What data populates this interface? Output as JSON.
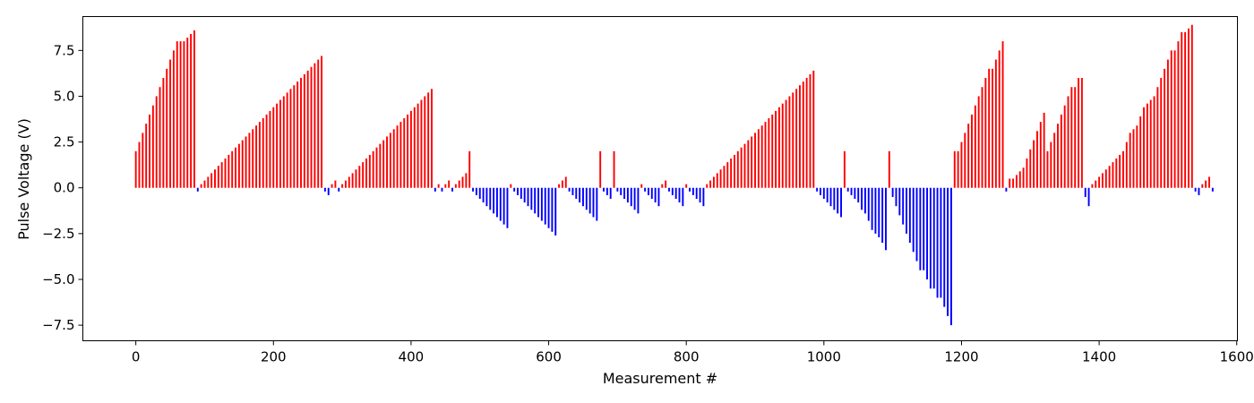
{
  "chart_data": {
    "type": "bar",
    "title": "",
    "xlabel": "Measurement #",
    "ylabel": "Pulse Voltage (V)",
    "xlim": [
      -77,
      1601
    ],
    "ylim": [
      -8.35,
      9.35
    ],
    "xticks": [
      0,
      200,
      400,
      600,
      800,
      1000,
      1200,
      1400,
      1600
    ],
    "yticks": [
      -7.5,
      -5.0,
      -2.5,
      0.0,
      2.5,
      5.0,
      7.5
    ],
    "ytick_labels": [
      "−7.5",
      "−5.0",
      "−2.5",
      "0.0",
      "2.5",
      "5.0",
      "7.5"
    ],
    "colors": {
      "positive": "#ff0000",
      "negative": "#0000ff"
    },
    "bar_spacing": 5,
    "grid": false,
    "series": [
      {
        "name": "pulse voltage",
        "x_start": 0,
        "x_step": 5,
        "values": [
          2.0,
          2.5,
          3.0,
          3.5,
          4.0,
          4.5,
          5.0,
          5.5,
          6.0,
          6.5,
          7.0,
          7.5,
          8.0,
          8.0,
          8.0,
          8.2,
          8.4,
          8.6,
          -0.2,
          0.2,
          0.4,
          0.6,
          0.8,
          1.0,
          1.2,
          1.4,
          1.6,
          1.8,
          2.0,
          2.2,
          2.4,
          2.6,
          2.8,
          3.0,
          3.2,
          3.4,
          3.6,
          3.8,
          4.0,
          4.2,
          4.4,
          4.6,
          4.8,
          5.0,
          5.2,
          5.4,
          5.6,
          5.8,
          6.0,
          6.2,
          6.4,
          6.6,
          6.8,
          7.0,
          7.2,
          -0.2,
          -0.4,
          0.2,
          0.4,
          -0.2,
          0.2,
          0.4,
          0.6,
          0.8,
          1.0,
          1.2,
          1.4,
          1.6,
          1.8,
          2.0,
          2.2,
          2.4,
          2.6,
          2.8,
          3.0,
          3.2,
          3.4,
          3.6,
          3.8,
          4.0,
          4.2,
          4.4,
          4.6,
          4.8,
          5.0,
          5.2,
          5.4,
          -0.2,
          0.2,
          -0.2,
          0.2,
          0.4,
          -0.2,
          0.2,
          0.4,
          0.6,
          0.8,
          2.0,
          -0.2,
          -0.4,
          -0.6,
          -0.8,
          -1.0,
          -1.2,
          -1.4,
          -1.6,
          -1.8,
          -2.0,
          -2.2,
          0.2,
          -0.2,
          -0.4,
          -0.6,
          -0.8,
          -1.0,
          -1.2,
          -1.4,
          -1.6,
          -1.8,
          -2.0,
          -2.2,
          -2.4,
          -2.6,
          0.2,
          0.4,
          0.6,
          -0.2,
          -0.4,
          -0.6,
          -0.8,
          -1.0,
          -1.2,
          -1.4,
          -1.6,
          -1.8,
          2.0,
          -0.2,
          -0.4,
          -0.6,
          2.0,
          -0.2,
          -0.4,
          -0.6,
          -0.8,
          -1.0,
          -1.2,
          -1.4,
          0.2,
          -0.2,
          -0.4,
          -0.6,
          -0.8,
          -1.0,
          0.2,
          0.4,
          -0.2,
          -0.4,
          -0.6,
          -0.8,
          -1.0,
          0.2,
          -0.2,
          -0.4,
          -0.6,
          -0.8,
          -1.0,
          0.2,
          0.4,
          0.6,
          0.8,
          1.0,
          1.2,
          1.4,
          1.6,
          1.8,
          2.0,
          2.2,
          2.4,
          2.6,
          2.8,
          3.0,
          3.2,
          3.4,
          3.6,
          3.8,
          4.0,
          4.2,
          4.4,
          4.6,
          4.8,
          5.0,
          5.2,
          5.4,
          5.6,
          5.8,
          6.0,
          6.2,
          6.4,
          -0.2,
          -0.4,
          -0.6,
          -0.8,
          -1.0,
          -1.2,
          -1.4,
          -1.6,
          2.0,
          -0.2,
          -0.4,
          -0.6,
          -0.8,
          -1.2,
          -1.4,
          -1.8,
          -2.3,
          -2.5,
          -2.7,
          -3.0,
          -3.4,
          2.0,
          -0.5,
          -1.0,
          -1.5,
          -2.0,
          -2.5,
          -3.0,
          -3.5,
          -4.0,
          -4.5,
          -4.5,
          -5.0,
          -5.5,
          -5.5,
          -6.0,
          -6.0,
          -6.5,
          -7.0,
          -7.5,
          2.0,
          2.0,
          2.5,
          3.0,
          3.5,
          4.0,
          4.5,
          5.0,
          5.5,
          6.0,
          6.5,
          6.5,
          7.0,
          7.5,
          8.0,
          -0.2,
          0.5,
          0.5,
          0.7,
          0.9,
          1.1,
          1.6,
          2.1,
          2.6,
          3.1,
          3.6,
          4.1,
          2.0,
          2.5,
          3.0,
          3.5,
          4.0,
          4.5,
          5.0,
          5.5,
          5.5,
          6.0,
          6.0,
          -0.5,
          -1.0,
          0.2,
          0.4,
          0.6,
          0.8,
          1.0,
          1.2,
          1.4,
          1.6,
          1.8,
          2.0,
          2.5,
          3.0,
          3.2,
          3.4,
          3.9,
          4.4,
          4.6,
          4.8,
          5.0,
          5.5,
          6.0,
          6.5,
          7.0,
          7.5,
          7.5,
          8.0,
          8.5,
          8.5,
          8.7,
          8.9,
          -0.2,
          -0.4,
          0.2,
          0.4,
          0.6,
          -0.2
        ]
      }
    ]
  }
}
